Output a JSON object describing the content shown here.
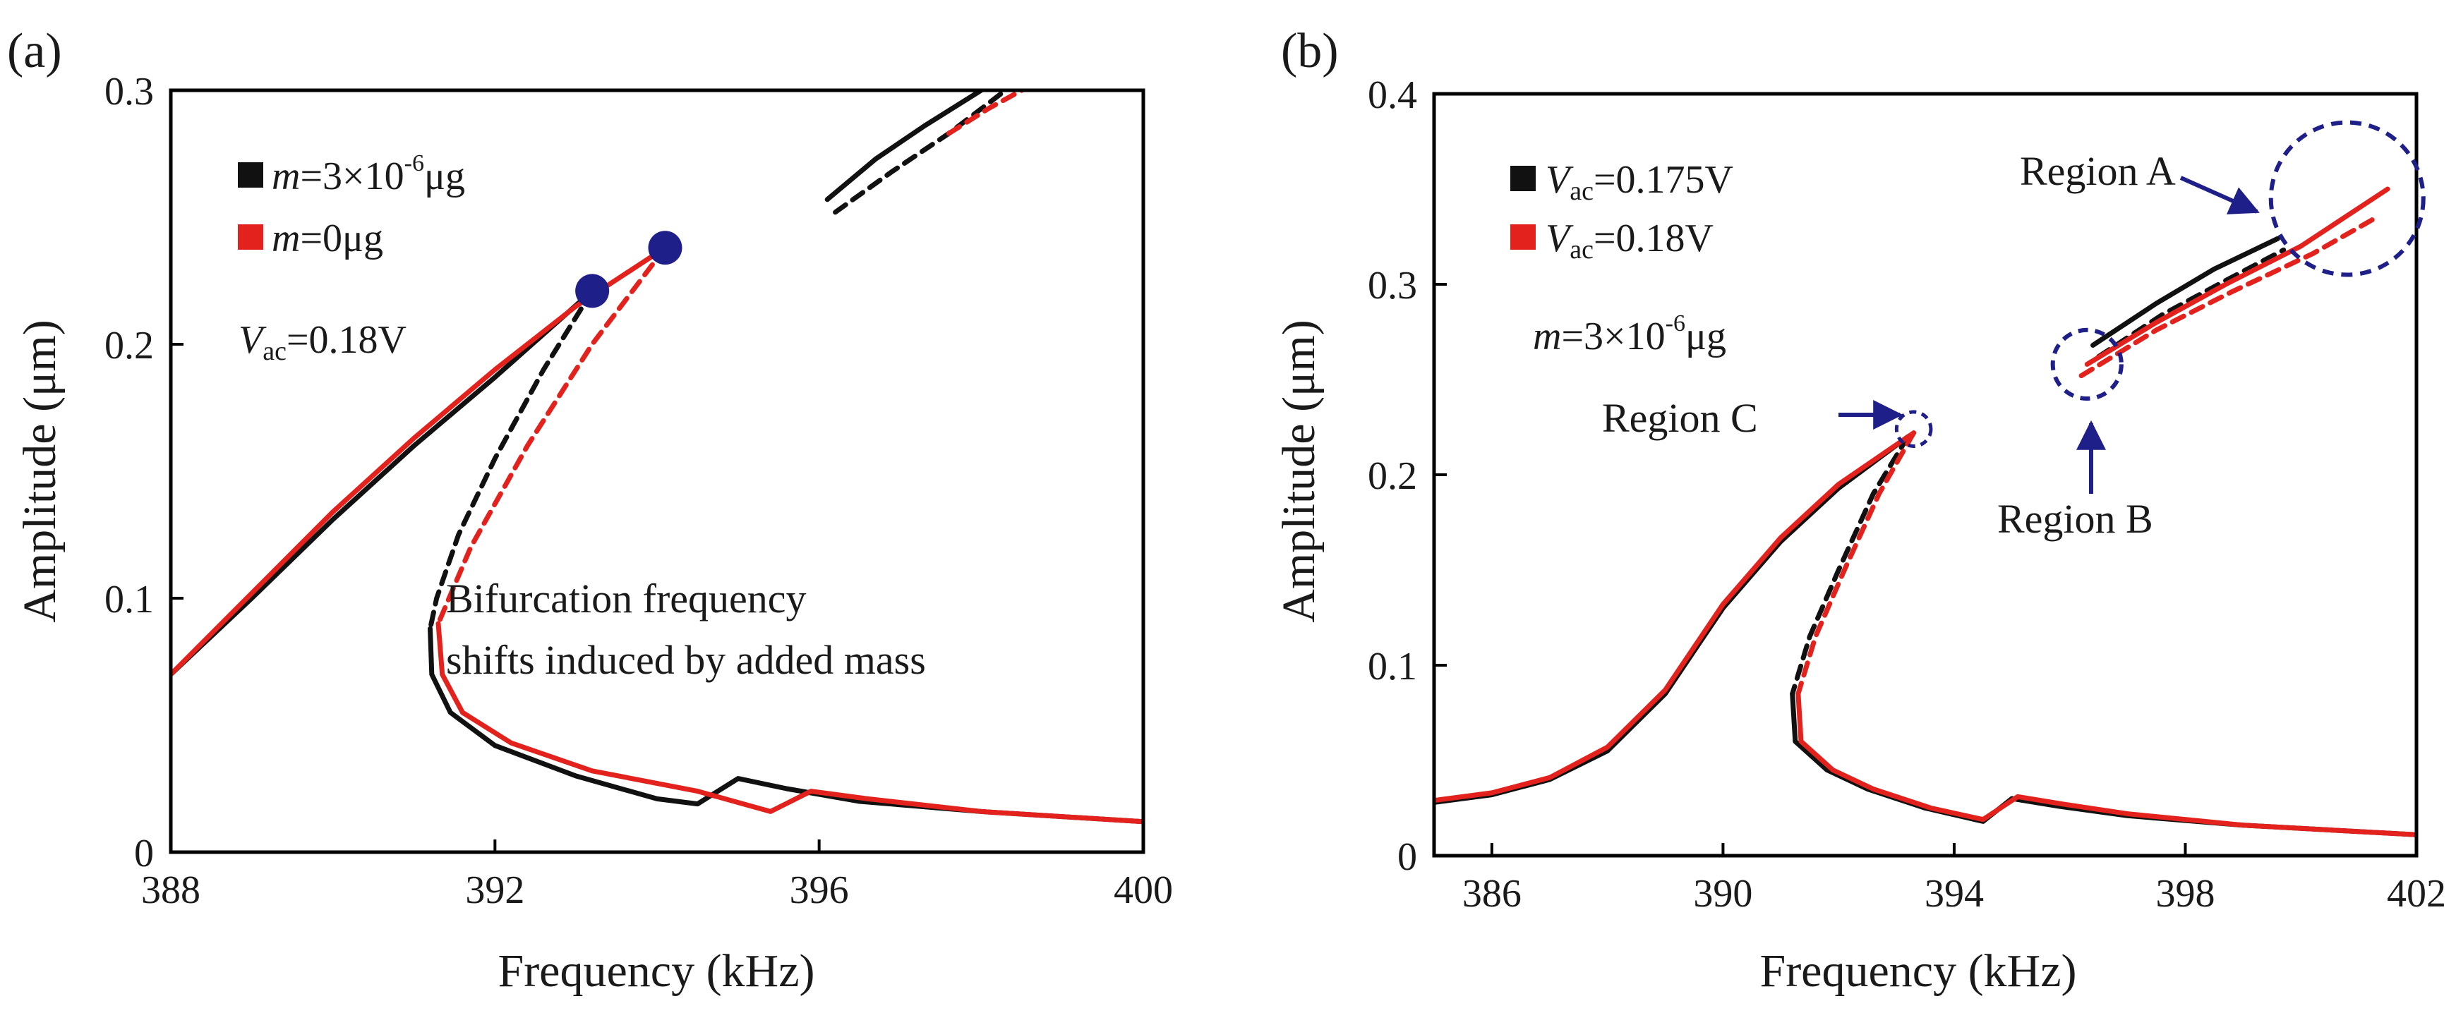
{
  "chart_data": [
    {
      "type": "line",
      "panel_label": "(a)",
      "xlabel": "Frequency (kHz)",
      "ylabel": "Amplitude (μm)",
      "xlim": [
        388,
        400
      ],
      "ylim": [
        0,
        0.3
      ],
      "xticks": [
        "388",
        "392",
        "396",
        "400"
      ],
      "yticks": [
        "0",
        "0.1",
        "0.2",
        "0.3"
      ],
      "legend": {
        "placement": "top-left",
        "entries": [
          {
            "text": "m=3×10⁻⁶μg",
            "color": "#111111"
          },
          {
            "text": "m=0μg",
            "color": "#e3221d"
          }
        ]
      },
      "parameter_label": "Vac=0.18V",
      "annotation_lines": [
        "Bifurcation frequency",
        "shifts induced by added mass"
      ],
      "bifurcation_points": [
        {
          "x": 393.2,
          "y": 0.221,
          "color": "#1f1f8a"
        },
        {
          "x": 394.1,
          "y": 0.238,
          "color": "#1f1f8a"
        }
      ],
      "series": [
        {
          "color": "#111111",
          "style": "solid",
          "points": [
            [
              388,
              0.07
            ],
            [
              389,
              0.1
            ],
            [
              390,
              0.131
            ],
            [
              391,
              0.16
            ],
            [
              392,
              0.187
            ],
            [
              393.2,
              0.221
            ]
          ]
        },
        {
          "color": "#111111",
          "style": "dashed",
          "points": [
            [
              393.2,
              0.221
            ],
            [
              392.6,
              0.19
            ],
            [
              392.0,
              0.155
            ],
            [
              391.55,
              0.125
            ],
            [
              391.28,
              0.1
            ],
            [
              391.2,
              0.088
            ]
          ]
        },
        {
          "color": "#111111",
          "style": "solid",
          "points": [
            [
              391.2,
              0.088
            ],
            [
              391.22,
              0.07
            ],
            [
              391.45,
              0.055
            ],
            [
              392.0,
              0.042
            ],
            [
              393.0,
              0.03
            ],
            [
              394.0,
              0.021
            ],
            [
              394.5,
              0.019
            ],
            [
              395.0,
              0.029
            ],
            [
              395.6,
              0.025
            ],
            [
              396.5,
              0.02
            ],
            [
              398.0,
              0.016
            ],
            [
              400.0,
              0.012
            ]
          ]
        },
        {
          "color": "#111111",
          "style": "solid",
          "points": [
            [
              396.1,
              0.257
            ],
            [
              396.7,
              0.273
            ],
            [
              397.3,
              0.286
            ],
            [
              398.0,
              0.3
            ]
          ]
        },
        {
          "color": "#111111",
          "style": "dashed",
          "points": [
            [
              396.2,
              0.252
            ],
            [
              396.9,
              0.268
            ],
            [
              397.6,
              0.283
            ],
            [
              398.3,
              0.3
            ]
          ]
        },
        {
          "color": "#e3221d",
          "style": "solid",
          "points": [
            [
              388,
              0.07
            ],
            [
              389,
              0.102
            ],
            [
              390,
              0.134
            ],
            [
              391,
              0.163
            ],
            [
              392,
              0.19
            ],
            [
              393,
              0.215
            ],
            [
              394.1,
              0.238
            ]
          ]
        },
        {
          "color": "#e3221d",
          "style": "dashed",
          "points": [
            [
              394.1,
              0.238
            ],
            [
              393.2,
              0.2
            ],
            [
              392.4,
              0.16
            ],
            [
              391.7,
              0.12
            ],
            [
              391.3,
              0.09
            ]
          ]
        },
        {
          "color": "#e3221d",
          "style": "solid",
          "points": [
            [
              391.3,
              0.09
            ],
            [
              391.35,
              0.07
            ],
            [
              391.6,
              0.055
            ],
            [
              392.2,
              0.043
            ],
            [
              393.2,
              0.032
            ],
            [
              394.5,
              0.024
            ],
            [
              395.4,
              0.016
            ],
            [
              395.9,
              0.024
            ],
            [
              396.6,
              0.021
            ],
            [
              398.0,
              0.016
            ],
            [
              400.0,
              0.012
            ]
          ]
        },
        {
          "color": "#e3221d",
          "style": "dashed",
          "points": [
            [
              397.6,
              0.283
            ],
            [
              398.1,
              0.293
            ],
            [
              398.5,
              0.3
            ]
          ]
        }
      ]
    },
    {
      "type": "line",
      "panel_label": "(b)",
      "xlabel": "Frequency (kHz)",
      "ylabel": "Amplitude (μm)",
      "xlim": [
        385,
        402
      ],
      "ylim": [
        0,
        0.4
      ],
      "xticks": [
        "386",
        "390",
        "394",
        "398",
        "402"
      ],
      "yticks": [
        "0",
        "0.1",
        "0.2",
        "0.3",
        "0.4"
      ],
      "legend": {
        "placement": "top-left",
        "entries": [
          {
            "text": "Vac=0.175V",
            "color": "#111111"
          },
          {
            "text": "Vac=0.18V",
            "color": "#e3221d"
          }
        ]
      },
      "parameter_label": "m=3×10⁻⁶μg",
      "regions": [
        {
          "label": "Region A",
          "cx": 400.8,
          "cy": 0.345,
          "r": 0.04,
          "color": "#1f1f8a"
        },
        {
          "label": "Region B",
          "cx": 396.3,
          "cy": 0.258,
          "r": 0.018,
          "color": "#1f1f8a"
        },
        {
          "label": "Region C",
          "cx": 393.3,
          "cy": 0.224,
          "r": 0.009,
          "color": "#1f1f8a"
        }
      ],
      "series": [
        {
          "color": "#111111",
          "style": "solid",
          "points": [
            [
              385,
              0.028
            ],
            [
              386,
              0.032
            ],
            [
              387,
              0.04
            ],
            [
              388,
              0.055
            ],
            [
              389,
              0.085
            ],
            [
              390,
              0.13
            ],
            [
              391,
              0.165
            ],
            [
              392,
              0.193
            ],
            [
              393.2,
              0.22
            ]
          ]
        },
        {
          "color": "#111111",
          "style": "dashed",
          "points": [
            [
              393.2,
              0.22
            ],
            [
              392.6,
              0.19
            ],
            [
              392.0,
              0.15
            ],
            [
              391.5,
              0.115
            ],
            [
              391.2,
              0.085
            ]
          ]
        },
        {
          "color": "#111111",
          "style": "solid",
          "points": [
            [
              391.2,
              0.085
            ],
            [
              391.25,
              0.06
            ],
            [
              391.8,
              0.045
            ],
            [
              392.5,
              0.035
            ],
            [
              393.5,
              0.025
            ],
            [
              394.5,
              0.018
            ],
            [
              395.0,
              0.03
            ],
            [
              395.8,
              0.026
            ],
            [
              397.0,
              0.021
            ],
            [
              399.0,
              0.016
            ],
            [
              402.0,
              0.011
            ]
          ]
        },
        {
          "color": "#111111",
          "style": "solid",
          "points": [
            [
              396.4,
              0.268
            ],
            [
              397.5,
              0.29
            ],
            [
              398.5,
              0.308
            ],
            [
              399.6,
              0.324
            ]
          ]
        },
        {
          "color": "#111111",
          "style": "dashed",
          "points": [
            [
              396.5,
              0.262
            ],
            [
              397.6,
              0.284
            ],
            [
              398.7,
              0.302
            ],
            [
              399.7,
              0.318
            ]
          ]
        },
        {
          "color": "#e3221d",
          "style": "solid",
          "points": [
            [
              385,
              0.029
            ],
            [
              386,
              0.033
            ],
            [
              387,
              0.041
            ],
            [
              388,
              0.057
            ],
            [
              389,
              0.087
            ],
            [
              390,
              0.132
            ],
            [
              391,
              0.167
            ],
            [
              392,
              0.195
            ],
            [
              393.3,
              0.222
            ]
          ]
        },
        {
          "color": "#e3221d",
          "style": "dashed",
          "points": [
            [
              393.3,
              0.222
            ],
            [
              392.7,
              0.19
            ],
            [
              392.1,
              0.15
            ],
            [
              391.6,
              0.115
            ],
            [
              391.3,
              0.085
            ]
          ]
        },
        {
          "color": "#e3221d",
          "style": "solid",
          "points": [
            [
              391.3,
              0.085
            ],
            [
              391.35,
              0.06
            ],
            [
              391.9,
              0.045
            ],
            [
              392.6,
              0.035
            ],
            [
              393.6,
              0.025
            ],
            [
              394.5,
              0.019
            ],
            [
              395.1,
              0.031
            ],
            [
              395.9,
              0.027
            ],
            [
              397.0,
              0.022
            ],
            [
              399.0,
              0.016
            ],
            [
              402.0,
              0.011
            ]
          ]
        },
        {
          "color": "#e3221d",
          "style": "solid",
          "points": [
            [
              396.3,
              0.258
            ],
            [
              397.5,
              0.28
            ],
            [
              398.7,
              0.3
            ],
            [
              400.0,
              0.32
            ],
            [
              401.5,
              0.35
            ]
          ]
        },
        {
          "color": "#e3221d",
          "style": "dashed",
          "points": [
            [
              396.2,
              0.252
            ],
            [
              397.5,
              0.276
            ],
            [
              398.8,
              0.296
            ],
            [
              400.2,
              0.316
            ],
            [
              401.3,
              0.335
            ]
          ]
        }
      ]
    }
  ]
}
